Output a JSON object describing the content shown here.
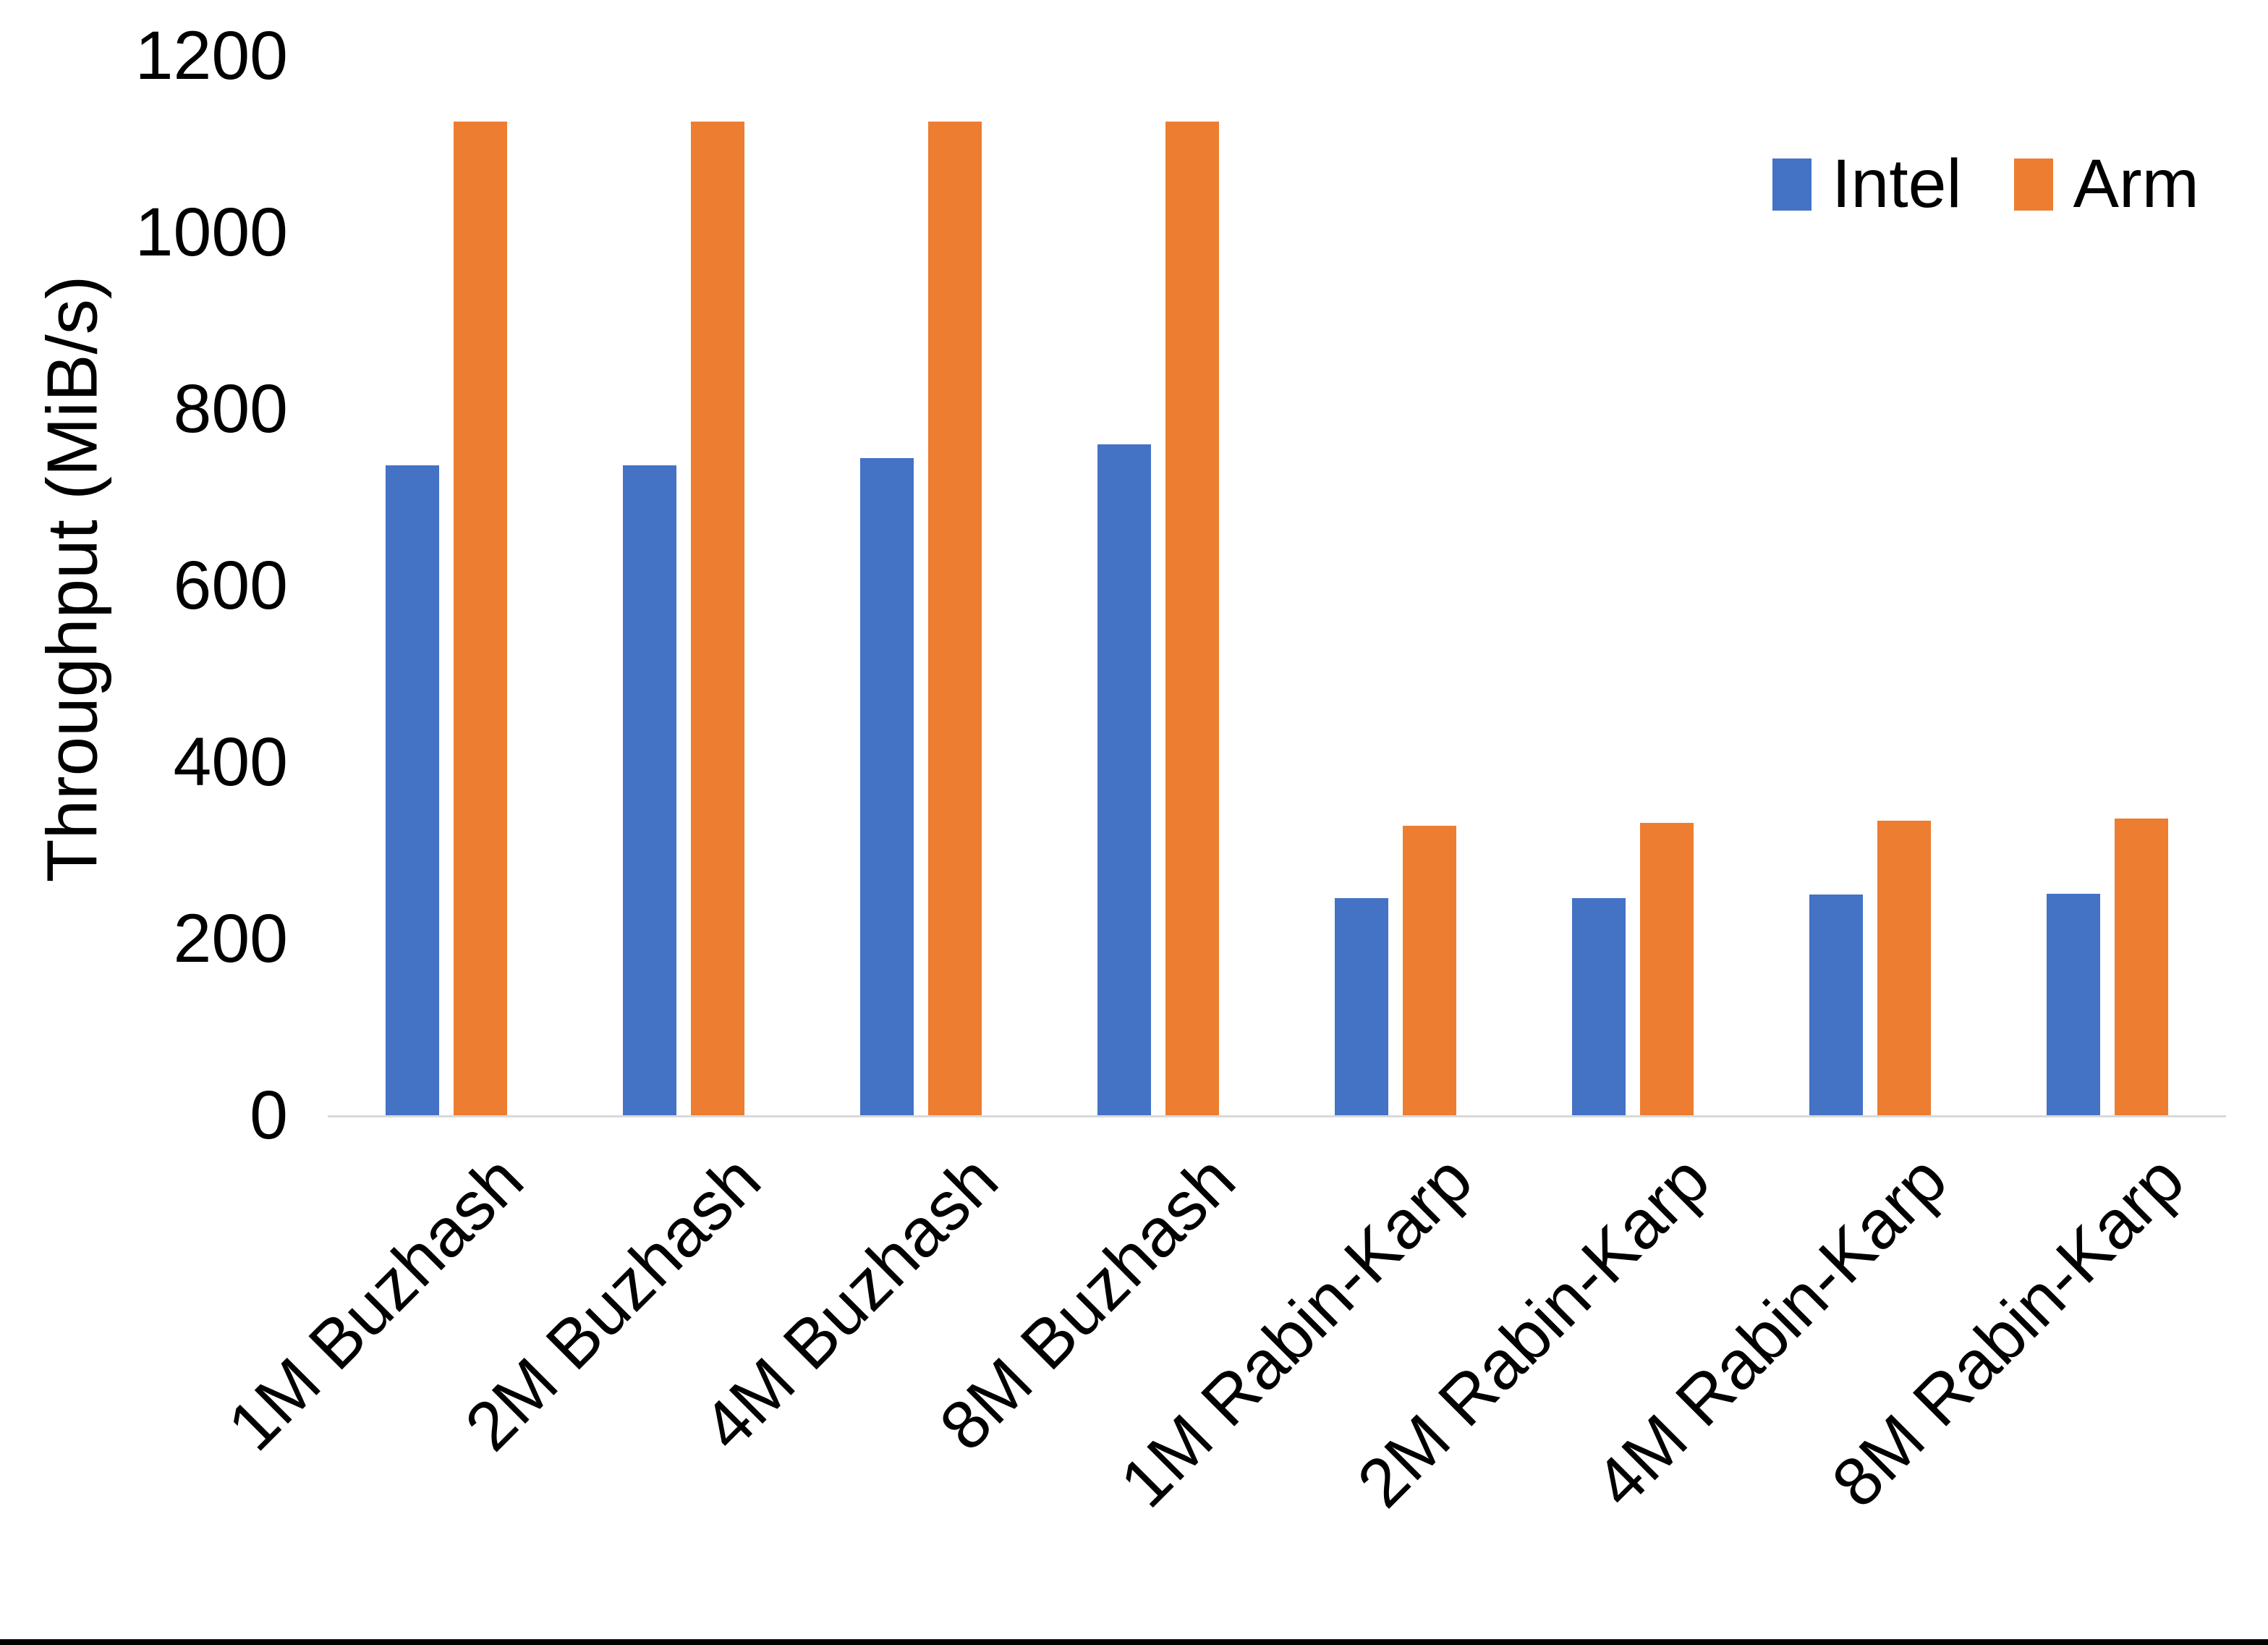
{
  "chart_data": {
    "type": "bar",
    "title": "",
    "xlabel": "",
    "ylabel": "Throughput (MiB/s)",
    "ylim": [
      0,
      1200
    ],
    "yticks": [
      0,
      200,
      400,
      600,
      800,
      1000,
      1200
    ],
    "grid": false,
    "legend_position": "top-right",
    "categories": [
      "1M Buzhash",
      "2M Buzhash",
      "4M Buzhash",
      "8M Buzhash",
      "1M Rabin-Karp",
      "2M Rabin-Karp",
      "4M Rabin-Karp",
      "8M Rabin-Karp"
    ],
    "series": [
      {
        "name": "Intel",
        "color": "#4472C4",
        "values": [
          736,
          736,
          744,
          760,
          246,
          246,
          250,
          251
        ]
      },
      {
        "name": "Arm",
        "color": "#ED7D31",
        "values": [
          1125,
          1125,
          1125,
          1125,
          328,
          331,
          334,
          336
        ]
      }
    ]
  },
  "colors": {
    "background": "#FFFFFF",
    "axis_line": "#D9D9D9",
    "text": "#000000",
    "bottom_border": "#000000"
  }
}
